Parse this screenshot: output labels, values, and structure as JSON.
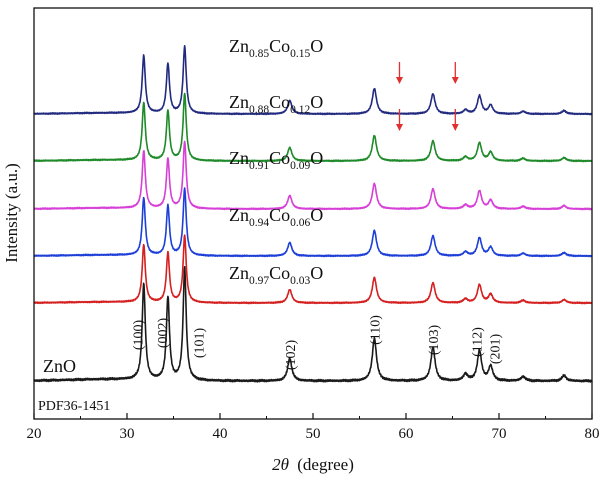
{
  "chart_data": {
    "type": "line",
    "xlabel_symbol": "2θ",
    "xlabel_unit": "(degree)",
    "ylabel": "Intensity (a.u.)",
    "xlim": [
      20,
      80
    ],
    "xticks": [
      20,
      30,
      40,
      50,
      60,
      70,
      80
    ],
    "reference_label": "PDF36-1451",
    "series": [
      {
        "name": "ZnO",
        "color": "#1a1a1a",
        "label_parts": [
          {
            "text": "ZnO"
          }
        ]
      },
      {
        "name": "Zn0.97Co0.03O",
        "color": "#d42020",
        "label_parts": [
          {
            "text": "Zn"
          },
          {
            "text": "0.97",
            "sub": true
          },
          {
            "text": "Co"
          },
          {
            "text": "0.03",
            "sub": true
          },
          {
            "text": "O"
          }
        ]
      },
      {
        "name": "Zn0.94Co0.06O",
        "color": "#1d3fd8",
        "label_parts": [
          {
            "text": "Zn"
          },
          {
            "text": "0.94",
            "sub": true
          },
          {
            "text": "Co"
          },
          {
            "text": "0.06",
            "sub": true
          },
          {
            "text": "O"
          }
        ]
      },
      {
        "name": "Zn0.91Co0.09O",
        "color": "#d640d6",
        "label_parts": [
          {
            "text": "Zn"
          },
          {
            "text": "0.91",
            "sub": true
          },
          {
            "text": "Co"
          },
          {
            "text": "0.09",
            "sub": true
          },
          {
            "text": "O"
          }
        ]
      },
      {
        "name": "Zn0.88Co0.12O",
        "color": "#1f8a2a",
        "label_parts": [
          {
            "text": "Zn"
          },
          {
            "text": "0.88",
            "sub": true
          },
          {
            "text": "Co"
          },
          {
            "text": "0.12",
            "sub": true
          },
          {
            "text": "O"
          }
        ]
      },
      {
        "name": "Zn0.85Co0.15O",
        "color": "#222a80",
        "label_parts": [
          {
            "text": "Zn"
          },
          {
            "text": "0.85",
            "sub": true
          },
          {
            "text": "Co"
          },
          {
            "text": "0.15",
            "sub": true
          },
          {
            "text": "O"
          }
        ]
      }
    ],
    "peaks": [
      {
        "pos": 31.8,
        "height": 0.86,
        "label": "(100)"
      },
      {
        "pos": 34.4,
        "height": 0.74,
        "label": "(002)"
      },
      {
        "pos": 36.2,
        "height": 1.0,
        "label": "(101)"
      },
      {
        "pos": 47.5,
        "height": 0.2,
        "label": "(102)"
      },
      {
        "pos": 56.6,
        "height": 0.38,
        "label": "(110)"
      },
      {
        "pos": 62.9,
        "height": 0.3,
        "label": "(103)"
      },
      {
        "pos": 66.4,
        "height": 0.06,
        "label": ""
      },
      {
        "pos": 67.9,
        "height": 0.27,
        "label": "(112)"
      },
      {
        "pos": 69.1,
        "height": 0.13,
        "label": "(201)"
      },
      {
        "pos": 72.6,
        "height": 0.04,
        "label": ""
      },
      {
        "pos": 77.0,
        "height": 0.05,
        "label": ""
      }
    ],
    "arrows": [
      {
        "series": "Zn0.85Co0.15O",
        "x": 59.3,
        "color": "#e03030"
      },
      {
        "series": "Zn0.85Co0.15O",
        "x": 65.3,
        "color": "#e03030"
      },
      {
        "series": "Zn0.88Co0.12O",
        "x": 59.3,
        "color": "#e03030"
      },
      {
        "series": "Zn0.88Co0.12O",
        "x": 65.3,
        "color": "#e03030"
      }
    ]
  }
}
